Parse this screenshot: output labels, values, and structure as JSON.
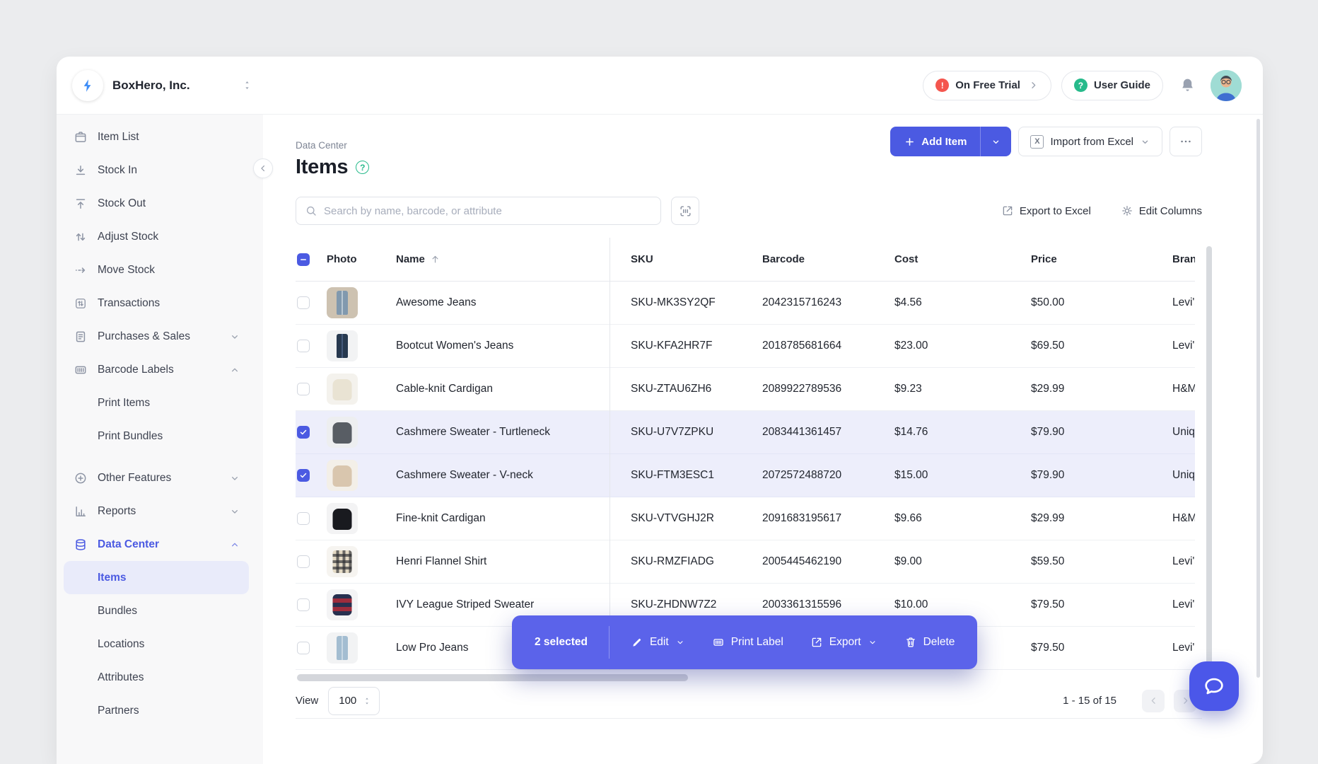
{
  "colors": {
    "accent": "#4b5ae2",
    "bar": "#5b63ea",
    "green": "#27ba8b",
    "red": "#f4564e",
    "selected_row": "#edeefb",
    "sidebar_active": "#e9ebfa",
    "chat": "#4b57e9"
  },
  "header": {
    "company": "BoxHero, Inc.",
    "trial_label": "On Free Trial",
    "trial_badge": "!",
    "user_guide_label": "User Guide",
    "guide_badge": "?"
  },
  "sidebar": {
    "items": [
      {
        "label": "Item List",
        "icon": "item-list"
      },
      {
        "label": "Stock In",
        "icon": "stock-in"
      },
      {
        "label": "Stock Out",
        "icon": "stock-out"
      },
      {
        "label": "Adjust Stock",
        "icon": "adjust-stock"
      },
      {
        "label": "Move Stock",
        "icon": "move-stock"
      },
      {
        "label": "Transactions",
        "icon": "transactions"
      },
      {
        "label": "Purchases & Sales",
        "icon": "purchases-sales",
        "chevron": "down"
      },
      {
        "label": "Barcode Labels",
        "icon": "barcode-labels",
        "chevron": "up"
      },
      {
        "label": "Print Items",
        "sub": true
      },
      {
        "label": "Print Bundles",
        "sub": true
      },
      {
        "label": "Other Features",
        "icon": "other-features",
        "chevron": "down",
        "gap": true
      },
      {
        "label": "Reports",
        "icon": "reports",
        "chevron": "down"
      },
      {
        "label": "Data Center",
        "icon": "data-center",
        "chevron": "up",
        "active": true
      },
      {
        "label": "Items",
        "sub": true,
        "selected": true
      },
      {
        "label": "Bundles",
        "sub": true
      },
      {
        "label": "Locations",
        "sub": true
      },
      {
        "label": "Attributes",
        "sub": true
      },
      {
        "label": "Partners",
        "sub": true
      }
    ]
  },
  "page": {
    "breadcrumb": "Data Center",
    "title": "Items",
    "help_badge": "?",
    "add_item_label": "Add Item",
    "import_label": "Import from Excel",
    "excel_badge": "X",
    "search_placeholder": "Search by name, barcode, or attribute",
    "export_excel_label": "Export to Excel",
    "edit_columns_label": "Edit Columns"
  },
  "table": {
    "columns": [
      "Photo",
      "Name",
      "SKU",
      "Barcode",
      "Cost",
      "Price",
      "Brand"
    ],
    "sort_column": "Name",
    "sort_direction": "asc",
    "items": [
      {
        "name": "Awesome Jeans",
        "sku": "SKU-MK3SY2QF",
        "barcode": "2042315716243",
        "cost": "$4.56",
        "price": "$50.00",
        "brand": "Levi's",
        "selected": false,
        "photo": {
          "type": "jeans",
          "bg": "#cdc2b1",
          "main": "#8199ae",
          "accent": "#b9c7d2"
        }
      },
      {
        "name": "Bootcut Women's Jeans",
        "sku": "SKU-KFA2HR7F",
        "barcode": "2018785681664",
        "cost": "$23.00",
        "price": "$69.50",
        "brand": "Levi's",
        "selected": false,
        "photo": {
          "type": "jeans",
          "bg": "#f2f3f4",
          "main": "#27394f",
          "accent": "#44597a"
        }
      },
      {
        "name": "Cable-knit Cardigan",
        "sku": "SKU-ZTAU6ZH6",
        "barcode": "2089922789536",
        "cost": "$9.23",
        "price": "$29.99",
        "brand": "H&M",
        "selected": false,
        "photo": {
          "type": "sweater",
          "bg": "#f4f2ed",
          "main": "#e9e3d3",
          "accent": "#e9e3d3"
        }
      },
      {
        "name": "Cashmere Sweater - Turtleneck",
        "sku": "SKU-U7V7ZPKU",
        "barcode": "2083441361457",
        "cost": "$14.76",
        "price": "$79.90",
        "brand": "Uniqlo",
        "selected": true,
        "photo": {
          "type": "sweater",
          "bg": "#edeef0",
          "main": "#585d64",
          "accent": "#585d64"
        }
      },
      {
        "name": "Cashmere Sweater - V-neck",
        "sku": "SKU-FTM3ESC1",
        "barcode": "2072572488720",
        "cost": "$15.00",
        "price": "$79.90",
        "brand": "Uniqlo",
        "selected": true,
        "photo": {
          "type": "sweater",
          "bg": "#f3efe8",
          "main": "#d9c6ae",
          "accent": "#d9c6ae"
        }
      },
      {
        "name": "Fine-knit Cardigan",
        "sku": "SKU-VTVGHJ2R",
        "barcode": "2091683195617",
        "cost": "$9.66",
        "price": "$29.99",
        "brand": "H&M",
        "selected": false,
        "photo": {
          "type": "sweater",
          "bg": "#f3f3f4",
          "main": "#191a1f",
          "accent": "#191a1f"
        }
      },
      {
        "name": "Henri Flannel Shirt",
        "sku": "SKU-RMZFIADG",
        "barcode": "2005445462190",
        "cost": "$9.00",
        "price": "$59.50",
        "brand": "Levi's",
        "selected": false,
        "photo": {
          "type": "plaid",
          "bg": "#f6f4f0",
          "main": "#e3d9c4",
          "accent": "rgba(42,43,48,0.65)"
        }
      },
      {
        "name": "IVY League Striped Sweater",
        "sku": "SKU-ZHDNW7Z2",
        "barcode": "2003361315596",
        "cost": "$10.00",
        "price": "$79.50",
        "brand": "Levi's",
        "selected": false,
        "photo": {
          "type": "stripes",
          "bg": "#f4f4f5",
          "main": "#27304f",
          "accent": "#9e2c3c"
        }
      },
      {
        "name": "Low Pro Jeans",
        "sku": "",
        "barcode": "",
        "cost": "",
        "price": "$79.50",
        "brand": "Levi's",
        "selected": false,
        "photo": {
          "type": "jeans",
          "bg": "#f2f3f4",
          "main": "#a3bdd1",
          "accent": "#c8d8e4"
        }
      }
    ]
  },
  "action_bar": {
    "selected_text": "2 selected",
    "edit_label": "Edit",
    "print_label": "Print Label",
    "export_label": "Export",
    "delete_label": "Delete"
  },
  "footer": {
    "view_label": "View",
    "page_size": "100",
    "range_text": "1 - 15 of 15"
  }
}
